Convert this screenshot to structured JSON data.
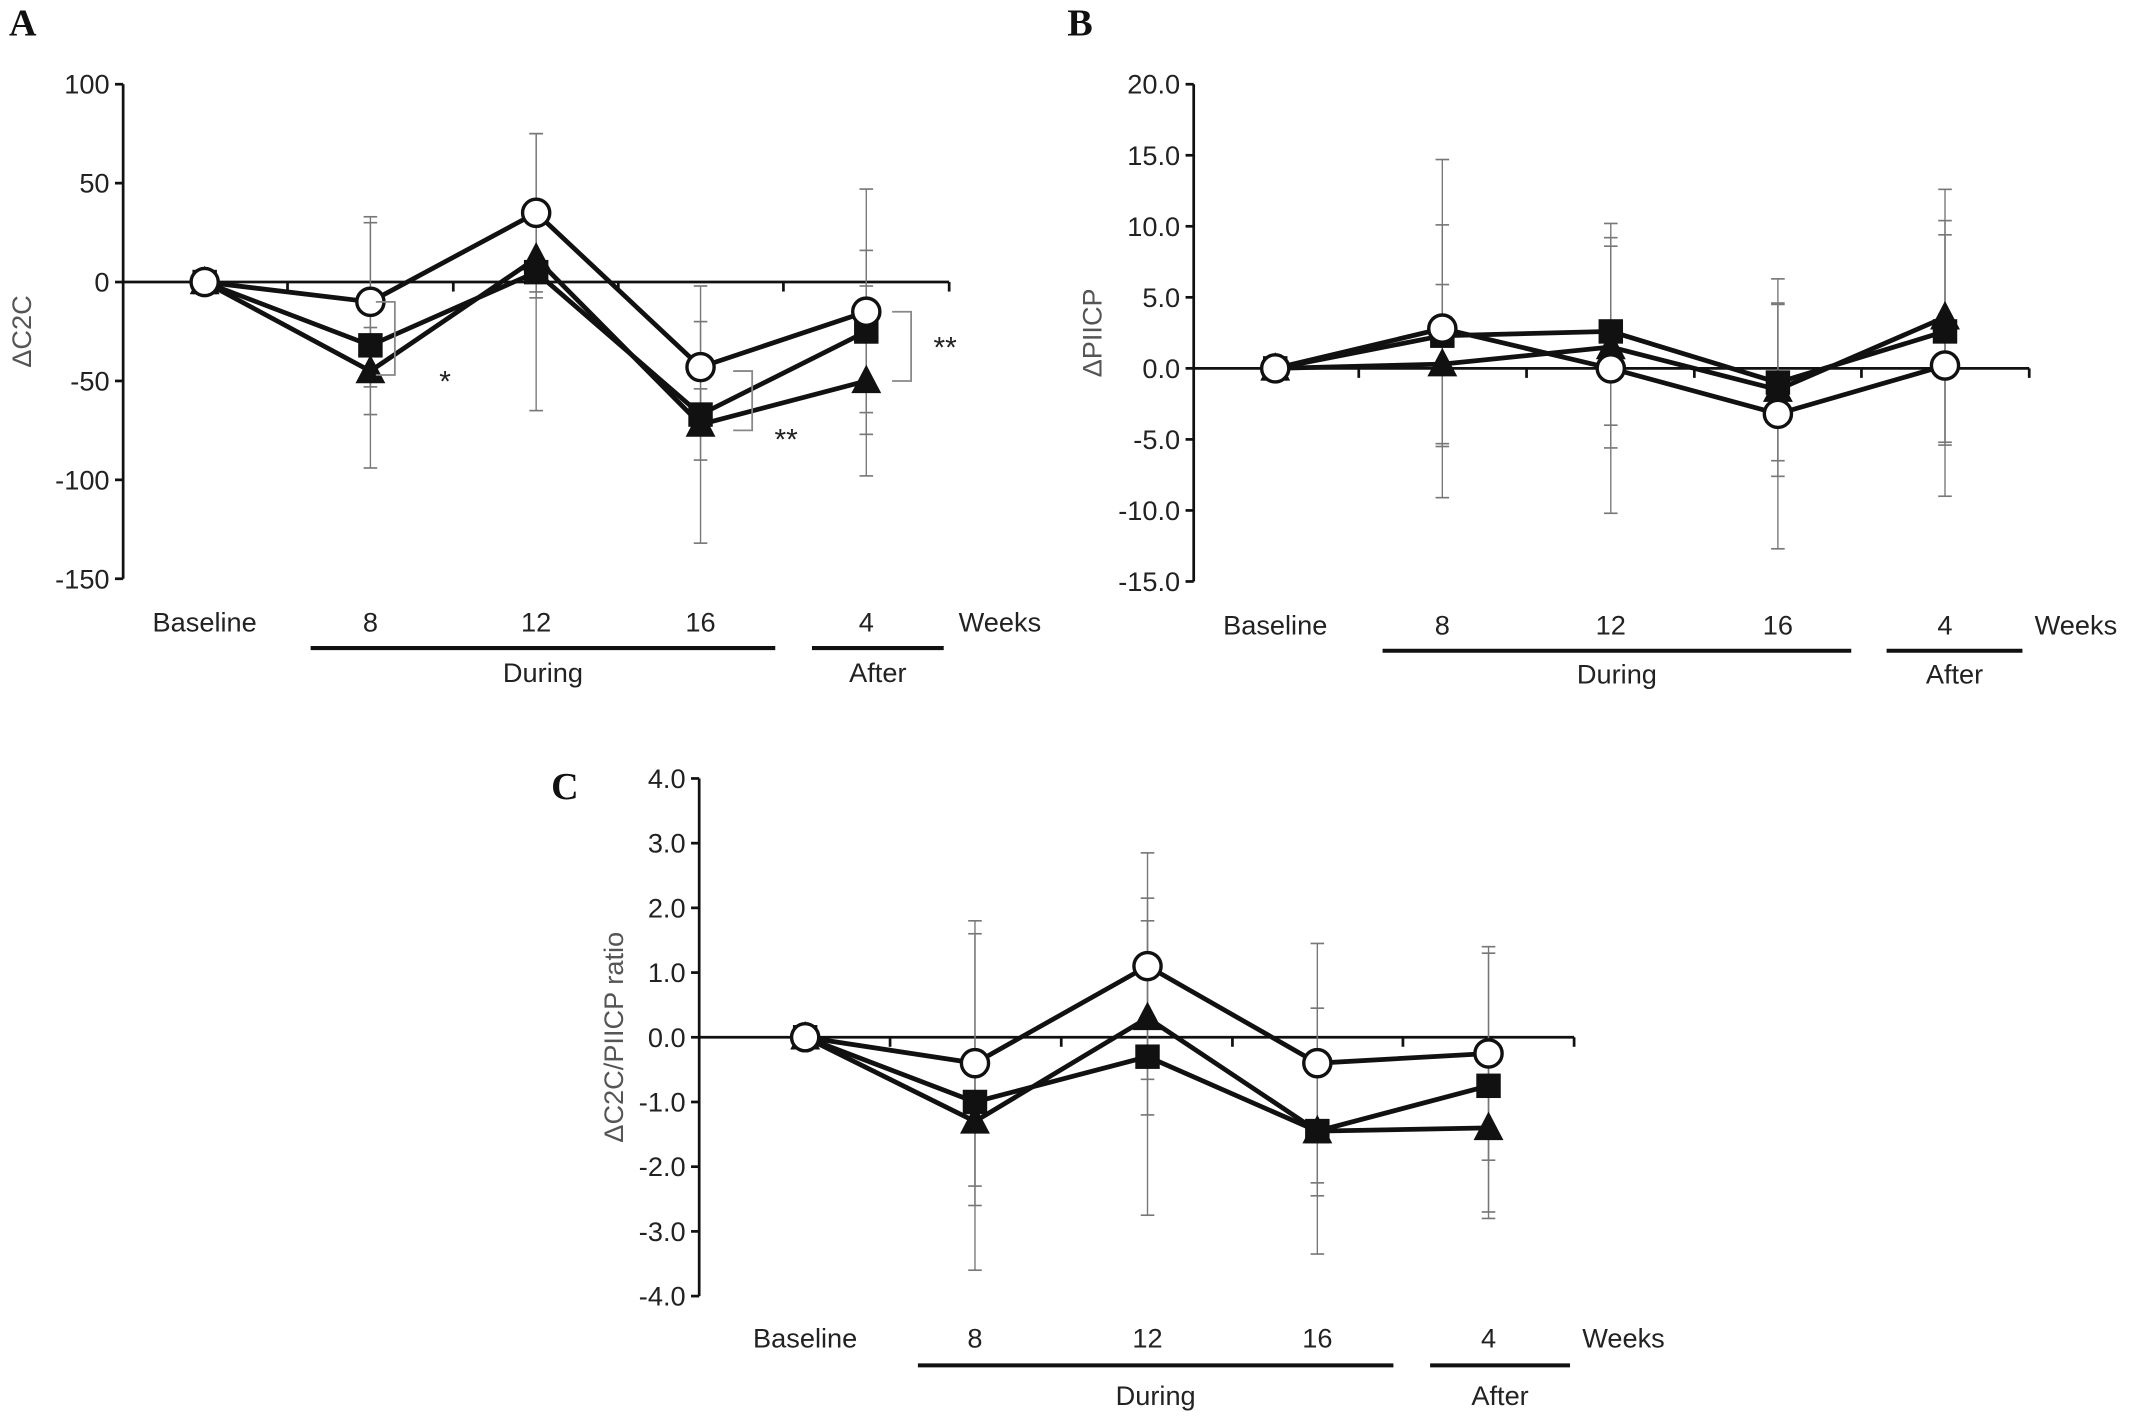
{
  "chart_data": [
    {
      "type": "line",
      "panel": "A",
      "ylabel": "ΔC2C",
      "ylim": [
        -150,
        100
      ],
      "yticks": [
        "100",
        "50",
        "0",
        "-50",
        "-100",
        "-150"
      ],
      "ytick_values": [
        100,
        50,
        0,
        -50,
        -100,
        -150
      ],
      "categories": [
        "Baseline",
        "8",
        "12",
        "16",
        "4"
      ],
      "x_unit": "Weeks",
      "groups": [
        {
          "label": "During"
        },
        {
          "label": "After"
        }
      ],
      "series": [
        {
          "name": "open-circle",
          "marker": "circle-open",
          "values": [
            0,
            -10,
            35,
            -43,
            -15
          ],
          "error": [
            0,
            43,
            40,
            23,
            62
          ]
        },
        {
          "name": "filled-square",
          "marker": "square",
          "values": [
            0,
            -32,
            5,
            -67,
            -25
          ],
          "error": [
            0,
            62,
            70,
            65,
            41
          ]
        },
        {
          "name": "filled-triangle",
          "marker": "triangle",
          "values": [
            0,
            -45,
            12,
            -72,
            -50
          ],
          "error": [
            0,
            22,
            20,
            18,
            48
          ]
        }
      ],
      "annotations": [
        {
          "text": "*",
          "at": "8"
        },
        {
          "text": "**",
          "at": "16"
        },
        {
          "text": "**",
          "at": "4"
        }
      ]
    },
    {
      "type": "line",
      "panel": "B",
      "ylabel": "ΔPIICP",
      "ylim": [
        -15,
        20
      ],
      "yticks": [
        "20.0",
        "15.0",
        "10.0",
        "5.0",
        "0.0",
        "-5.0",
        "-10.0",
        "-15.0"
      ],
      "ytick_values": [
        20,
        15,
        10,
        5,
        0,
        -5,
        -10,
        -15
      ],
      "categories": [
        "Baseline",
        "8",
        "12",
        "16",
        "4"
      ],
      "x_unit": "Weeks",
      "groups": [
        {
          "label": "During"
        },
        {
          "label": "After"
        }
      ],
      "series": [
        {
          "name": "open-circle",
          "marker": "circle-open",
          "values": [
            0,
            2.8,
            0,
            -3.2,
            0.2
          ],
          "error": [
            0,
            11.9,
            10.2,
            9.5,
            9.2
          ]
        },
        {
          "name": "filled-square",
          "marker": "square",
          "values": [
            0,
            2.3,
            2.6,
            -1.0,
            2.6
          ],
          "error": [
            0,
            7.8,
            6.6,
            5.5,
            7.8
          ]
        },
        {
          "name": "filled-triangle",
          "marker": "triangle",
          "values": [
            0,
            0.3,
            1.5,
            -1.5,
            3.6
          ],
          "error": [
            0,
            5.6,
            7.1,
            6.1,
            9.0
          ]
        }
      ],
      "annotations": []
    },
    {
      "type": "line",
      "panel": "C",
      "ylabel": "ΔC2C/PIICP ratio",
      "ylim": [
        -4,
        4
      ],
      "yticks": [
        "4.0",
        "3.0",
        "2.0",
        "1.0",
        "0.0",
        "-1.0",
        "-2.0",
        "-3.0",
        "-4.0"
      ],
      "ytick_values": [
        4,
        3,
        2,
        1,
        0,
        -1,
        -2,
        -3,
        -4
      ],
      "categories": [
        "Baseline",
        "8",
        "12",
        "16",
        "4"
      ],
      "x_unit": "Weeks",
      "groups": [
        {
          "label": "During"
        },
        {
          "label": "After"
        }
      ],
      "series": [
        {
          "name": "open-circle",
          "marker": "circle-open",
          "values": [
            0,
            -0.4,
            1.1,
            -0.4,
            -0.25
          ],
          "error": [
            0,
            2.2,
            1.75,
            1.85,
            1.65
          ]
        },
        {
          "name": "filled-square",
          "marker": "square",
          "values": [
            0,
            -1.0,
            -0.3,
            -1.45,
            -0.75
          ],
          "error": [
            0,
            2.6,
            2.45,
            1.9,
            2.05
          ]
        },
        {
          "name": "filled-triangle",
          "marker": "triangle",
          "values": [
            0,
            -1.3,
            0.3,
            -1.45,
            -1.4
          ],
          "error": [
            0,
            1.0,
            1.5,
            1.0,
            1.3
          ]
        }
      ],
      "annotations": []
    }
  ]
}
